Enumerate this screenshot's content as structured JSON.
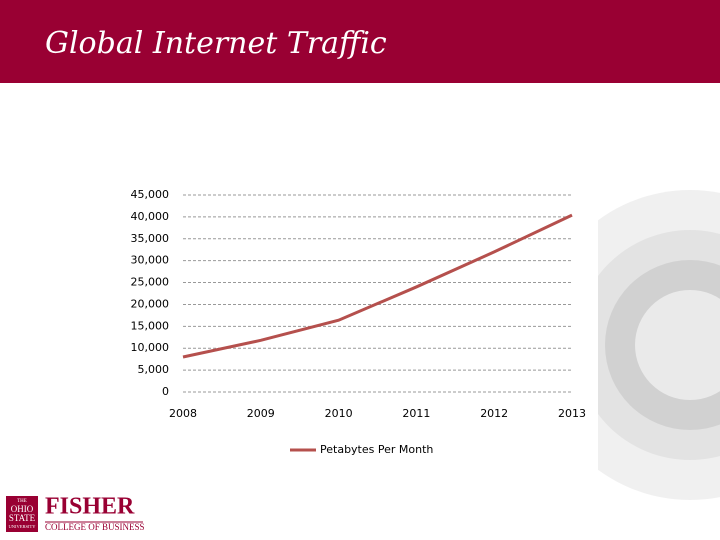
{
  "chart_data": {
    "type": "line",
    "title": "Global Internet Traffic",
    "x": [
      2008,
      2009,
      2010,
      2011,
      2012,
      2013
    ],
    "series": [
      {
        "name": "Petabytes Per Month",
        "color": "#b5504d",
        "values": [
          8000,
          11800,
          16400,
          24000,
          32000,
          40400
        ]
      }
    ],
    "xlim": [
      2008,
      2013
    ],
    "xticks": [
      2008,
      2009,
      2010,
      2011,
      2012,
      2013
    ],
    "ylim": [
      0,
      45000
    ],
    "yticks": [
      0,
      {
        "value": 5000,
        "label": "5,000"
      },
      {
        "value": 10000,
        "label": "10,000"
      },
      {
        "value": 15000,
        "label": "15,000"
      },
      {
        "value": 20000,
        "label": "20,000"
      },
      {
        "value": 25000,
        "label": "25,000"
      },
      {
        "value": 30000,
        "label": "30,000"
      },
      {
        "value": 35000,
        "label": "35,000"
      },
      {
        "value": 40000,
        "label": "40,000"
      },
      {
        "value": 45000,
        "label": "45,000"
      }
    ],
    "grid": true,
    "legend": "bottom"
  },
  "logo": {
    "seal": [
      "THE",
      "OHIO",
      "STATE",
      "UNIVERSITY"
    ],
    "name": "FISHER",
    "subtitle": "COLLEGE OF BUSINESS"
  }
}
